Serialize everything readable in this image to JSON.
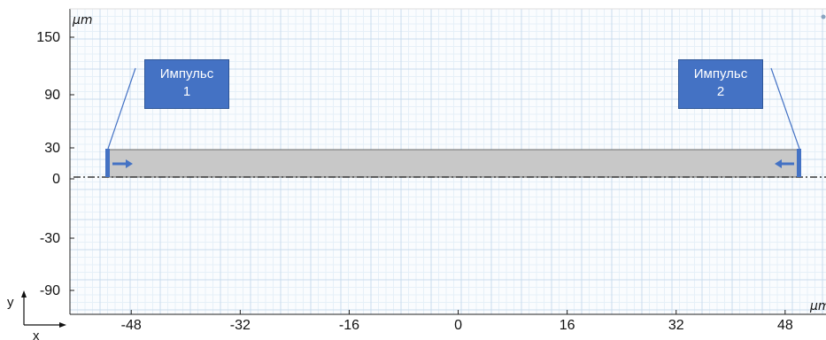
{
  "axes": {
    "x_unit": "μm",
    "y_unit": "μm",
    "x_ticks": [
      -48,
      -32,
      -16,
      0,
      16,
      32,
      48
    ],
    "y_tick_labels": [
      "150",
      "90",
      "30",
      "0",
      "-30",
      "-90"
    ],
    "x_range": [
      -57,
      54
    ],
    "grid": true
  },
  "coordinate_system": {
    "x_label": "x",
    "y_label": "y"
  },
  "geometry": {
    "domain_fill_color": "#c8c8c8",
    "domain_edge_color": "#6b6b6b",
    "boundary_color": "#4472c4",
    "centerline_style": "dash-dot"
  },
  "pulses": [
    {
      "title": "Импульс",
      "number": "1",
      "side": "left",
      "arrow_direction": "right"
    },
    {
      "title": "Импульс",
      "number": "2",
      "side": "right",
      "arrow_direction": "left"
    }
  ],
  "colors": {
    "callout_fill": "#4472c4",
    "grid_major": "#c9dced",
    "grid_minor": "#e6f0f8",
    "axis": "#222222"
  }
}
